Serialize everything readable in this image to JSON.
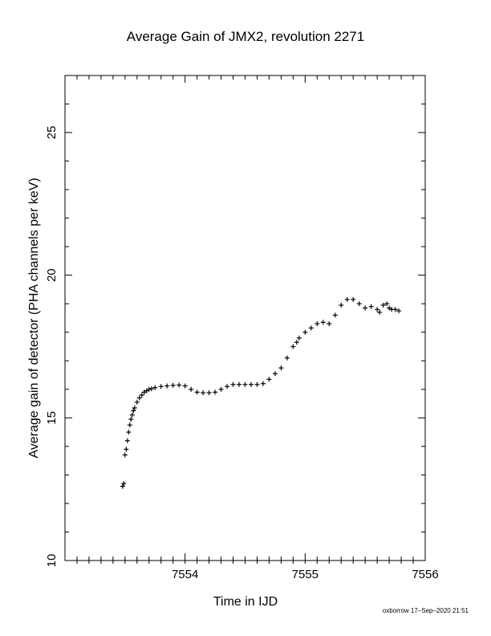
{
  "page": {
    "title": "Average Gain of JMX2, revolution 2271",
    "footer": "oxborrow 17–Sep–2020 21:51"
  },
  "chart_data": {
    "type": "scatter",
    "title": "Average Gain of JMX2, revolution 2271",
    "xlabel": "Time in IJD",
    "ylabel": "Average gain of detector (PHA channels per keV)",
    "xlim": [
      7553.0,
      7556.0
    ],
    "ylim": [
      10,
      27
    ],
    "xticks": [
      7554,
      7555,
      7556
    ],
    "yticks": [
      10,
      15,
      20,
      25
    ],
    "marker": "plus",
    "color": "#000000",
    "series": [
      {
        "x": [
          7553.48,
          7553.49,
          7553.5,
          7553.51,
          7553.52,
          7553.53,
          7553.54,
          7553.55,
          7553.56,
          7553.57,
          7553.58,
          7553.6,
          7553.62,
          7553.64,
          7553.66,
          7553.68,
          7553.7,
          7553.72,
          7553.75,
          7553.8,
          7553.85,
          7553.9,
          7553.95,
          7554.0,
          7554.05,
          7554.1,
          7554.15,
          7554.2,
          7554.25,
          7554.3,
          7554.35,
          7554.4,
          7554.45,
          7554.5,
          7554.55,
          7554.6,
          7554.65,
          7554.7,
          7554.75,
          7554.8,
          7554.85,
          7554.9,
          7554.93,
          7554.95,
          7555.0,
          7555.05,
          7555.1,
          7555.15,
          7555.2,
          7555.25,
          7555.3,
          7555.35,
          7555.4,
          7555.45,
          7555.5,
          7555.55,
          7555.6,
          7555.62,
          7555.65,
          7555.68,
          7555.7,
          7555.72,
          7555.75,
          7555.78
        ],
        "y": [
          12.6,
          12.7,
          13.7,
          13.9,
          14.2,
          14.5,
          14.75,
          14.95,
          15.1,
          15.25,
          15.35,
          15.55,
          15.7,
          15.8,
          15.9,
          15.95,
          16.0,
          16.02,
          16.06,
          16.1,
          16.12,
          16.14,
          16.15,
          16.12,
          16.0,
          15.9,
          15.88,
          15.88,
          15.9,
          16.0,
          16.1,
          16.17,
          16.17,
          16.17,
          16.17,
          16.17,
          16.2,
          16.35,
          16.55,
          16.75,
          17.1,
          17.5,
          17.65,
          17.8,
          18.0,
          18.15,
          18.3,
          18.35,
          18.3,
          18.6,
          18.95,
          19.15,
          19.15,
          19.0,
          18.85,
          18.9,
          18.8,
          18.7,
          18.95,
          19.0,
          18.85,
          18.8,
          18.8,
          18.75
        ]
      }
    ]
  }
}
